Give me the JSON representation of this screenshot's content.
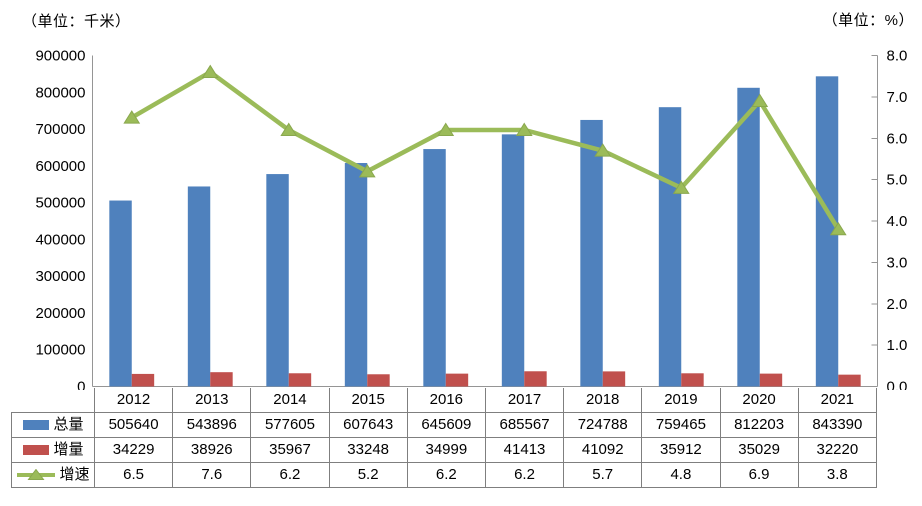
{
  "units": {
    "left": "（单位：千米）",
    "right": "（单位：%）"
  },
  "colors": {
    "total": "#4F81BD",
    "increment": "#C0504D",
    "rate": "#9BBB59",
    "rate_marker_edge": "#8AA84E",
    "axis": "#959595",
    "table_border": "#7F7F7F",
    "text": "#000000"
  },
  "chart_data": {
    "type": "bar",
    "subtype": "bar+line combo with data table legend",
    "title": "",
    "categories": [
      "2012",
      "2013",
      "2014",
      "2015",
      "2016",
      "2017",
      "2018",
      "2019",
      "2020",
      "2021"
    ],
    "series": [
      {
        "name": "总量",
        "chart": "bar",
        "axis": "left",
        "color": "#4F81BD",
        "values": [
          505640,
          543896,
          577605,
          607643,
          645609,
          685567,
          724788,
          759465,
          812203,
          843390
        ]
      },
      {
        "name": "增量",
        "chart": "bar",
        "axis": "left",
        "color": "#C0504D",
        "values": [
          34229,
          38926,
          35967,
          33248,
          34999,
          41413,
          41092,
          35912,
          35029,
          32220
        ]
      },
      {
        "name": "增速",
        "chart": "line",
        "axis": "right",
        "color": "#9BBB59",
        "values": [
          6.5,
          7.6,
          6.2,
          5.2,
          6.2,
          6.2,
          5.7,
          4.8,
          6.9,
          3.8
        ]
      }
    ],
    "left_axis": {
      "unit": "（单位：千米）",
      "min": 0,
      "max": 900000,
      "step": 100000,
      "decimals": 0
    },
    "right_axis": {
      "unit": "（单位：%）",
      "min": 0,
      "max": 8,
      "step": 1,
      "decimals": 1
    },
    "grid": false,
    "legend_position": "table-left-column"
  }
}
